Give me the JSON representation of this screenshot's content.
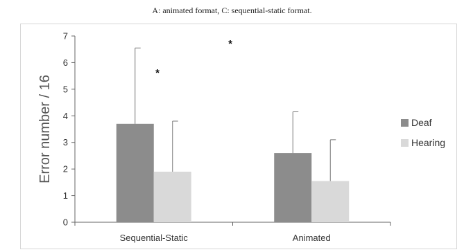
{
  "caption": "A: animated format, C: sequential-static format.",
  "chart_data": {
    "type": "bar",
    "categories": [
      "Sequential-Static",
      "Animated"
    ],
    "series": [
      {
        "name": "Deaf",
        "values": [
          3.7,
          2.6
        ],
        "error": [
          2.85,
          1.55
        ],
        "color": "#8c8c8c"
      },
      {
        "name": "Hearing",
        "values": [
          1.9,
          1.55
        ],
        "error": [
          1.9,
          1.55
        ],
        "color": "#d9d9d9"
      }
    ],
    "ylabel": "Error number / 16",
    "xlabel": "",
    "ylim": [
      0,
      7
    ],
    "yticks": [
      0,
      1,
      2,
      3,
      4,
      5,
      6,
      7
    ],
    "grid": false,
    "legend": "right",
    "annotations": [
      "*",
      "*"
    ]
  }
}
